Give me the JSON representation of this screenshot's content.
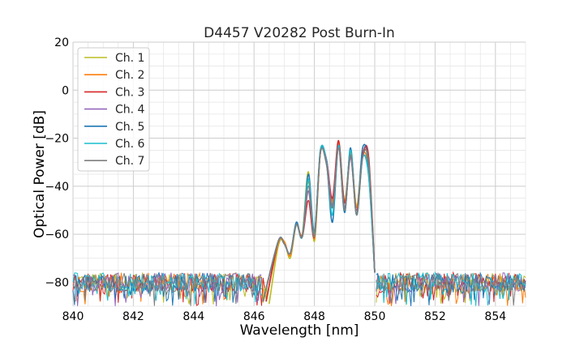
{
  "chart_data": {
    "type": "line",
    "title": "D4457 V20282 Post Burn-In",
    "xlabel": "Wavelength [nm]",
    "ylabel": "Optical Power [dB]",
    "xlim": [
      840,
      855
    ],
    "ylim": [
      -90,
      20
    ],
    "xticks": [
      840,
      842,
      844,
      846,
      848,
      850,
      852,
      854
    ],
    "yticks": [
      20,
      0,
      -20,
      -40,
      -60,
      -80
    ],
    "ytick_labels": [
      "20",
      "0",
      "−20",
      "−40",
      "−60",
      "−80"
    ],
    "grid": true,
    "minor_grid": true,
    "legend_position": "top-left",
    "noise_floor_db": -80,
    "series": [
      {
        "name": "Ch. 1",
        "color": "#bcbd22",
        "x": [
          846.5,
          846.8,
          847.0,
          847.2,
          847.4,
          847.6,
          847.8,
          848.0,
          848.2,
          848.4,
          848.6,
          848.8,
          849.0,
          849.2,
          849.4,
          849.6,
          849.8,
          850.0
        ],
        "y": [
          -89,
          -65,
          -63,
          -70,
          -56,
          -60,
          -34,
          -63,
          -26,
          -29,
          -47,
          -22,
          -46,
          -27,
          -48,
          -27,
          -31,
          -76
        ]
      },
      {
        "name": "Ch. 2",
        "color": "#ff7f0e",
        "x": [
          846.4,
          846.8,
          847.0,
          847.2,
          847.4,
          847.6,
          847.8,
          848.0,
          848.2,
          848.4,
          848.6,
          848.8,
          849.0,
          849.2,
          849.4,
          849.6,
          849.8,
          850.0
        ],
        "y": [
          -88,
          -64,
          -63,
          -69,
          -56,
          -60,
          -38,
          -62,
          -26,
          -29,
          -46,
          -22,
          -47,
          -26,
          -49,
          -27,
          -34,
          -76
        ]
      },
      {
        "name": "Ch. 3",
        "color": "#d62728",
        "x": [
          846.4,
          846.8,
          847.0,
          847.2,
          847.4,
          847.6,
          847.8,
          848.0,
          848.2,
          848.4,
          848.6,
          848.8,
          849.0,
          849.2,
          849.4,
          849.6,
          849.8,
          850.0
        ],
        "y": [
          -88,
          -63,
          -64,
          -68,
          -56,
          -61,
          -46,
          -61,
          -26,
          -29,
          -45,
          -21,
          -47,
          -27,
          -50,
          -27,
          -28,
          -76
        ]
      },
      {
        "name": "Ch. 4",
        "color": "#9467bd",
        "x": [
          846.3,
          846.8,
          847.0,
          847.2,
          847.4,
          847.6,
          847.8,
          848.0,
          848.2,
          848.4,
          848.6,
          848.8,
          849.0,
          849.2,
          849.4,
          849.6,
          849.8,
          850.0
        ],
        "y": [
          -88,
          -63,
          -64,
          -68,
          -56,
          -61,
          -42,
          -60,
          -26,
          -29,
          -48,
          -23,
          -49,
          -28,
          -51,
          -28,
          -36,
          -76
        ]
      },
      {
        "name": "Ch. 5",
        "color": "#1f77b4",
        "x": [
          846.3,
          846.8,
          847.0,
          847.2,
          847.4,
          847.6,
          847.8,
          848.0,
          848.2,
          848.4,
          848.6,
          848.8,
          849.0,
          849.2,
          849.4,
          849.6,
          849.8,
          850.0
        ],
        "y": [
          -88,
          -63,
          -64,
          -68,
          -55,
          -61,
          -35,
          -59,
          -25,
          -30,
          -55,
          -23,
          -51,
          -24,
          -52,
          -24,
          -32,
          -76
        ]
      },
      {
        "name": "Ch. 6",
        "color": "#17becf",
        "x": [
          846.3,
          846.8,
          847.0,
          847.2,
          847.4,
          847.6,
          847.8,
          848.0,
          848.2,
          848.4,
          848.6,
          848.8,
          849.0,
          849.2,
          849.4,
          849.6,
          849.8,
          850.0
        ],
        "y": [
          -88,
          -63,
          -64,
          -68,
          -56,
          -61,
          -37,
          -60,
          -25,
          -30,
          -52,
          -23,
          -50,
          -25,
          -52,
          -28,
          -36,
          -76
        ]
      },
      {
        "name": "Ch. 7",
        "color": "#7f7f7f",
        "x": [
          846.3,
          846.8,
          847.0,
          847.2,
          847.4,
          847.6,
          847.8,
          848.0,
          848.2,
          848.4,
          848.6,
          848.8,
          849.0,
          849.2,
          849.4,
          849.6,
          849.8,
          850.0
        ],
        "y": [
          -88,
          -63,
          -64,
          -68,
          -56,
          -61,
          -40,
          -61,
          -26,
          -31,
          -49,
          -24,
          -50,
          -27,
          -52,
          -28,
          -30,
          -76
        ]
      }
    ]
  }
}
